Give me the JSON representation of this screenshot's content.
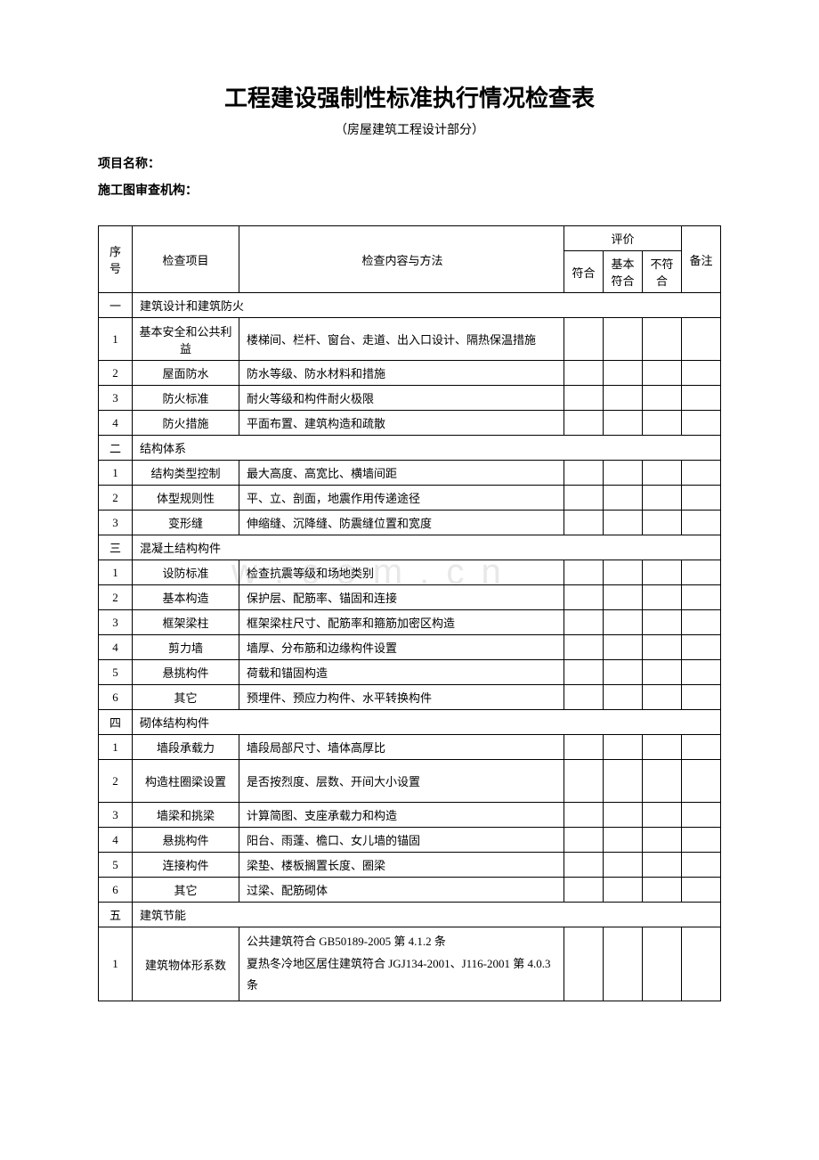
{
  "title": "工程建设强制性标准执行情况检查表",
  "subtitle": "（房屋建筑工程设计部分）",
  "fields": {
    "project_label": "项目名称：",
    "agency_label": "施工图审查机构："
  },
  "header": {
    "seq": "序号",
    "item": "检查项目",
    "content": "检查内容与方法",
    "eval": "评价",
    "eval_pass": "符合",
    "eval_basic": "基本符合",
    "eval_fail": "不符合",
    "note": "备注"
  },
  "sections": [
    {
      "num": "一",
      "label": "建筑设计和建筑防火",
      "rows": [
        {
          "n": "1",
          "item": "基本安全和公共利益",
          "content": "楼梯间、栏杆、窗台、走道、出入口设计、隔热保温措施",
          "tall": true
        },
        {
          "n": "2",
          "item": "屋面防水",
          "content": "防水等级、防水材料和措施"
        },
        {
          "n": "3",
          "item": "防火标准",
          "content": "耐火等级和构件耐火极限"
        },
        {
          "n": "4",
          "item": "防火措施",
          "content": "平面布置、建筑构造和疏散"
        }
      ]
    },
    {
      "num": "二",
      "label": "结构体系",
      "rows": [
        {
          "n": "1",
          "item": "结构类型控制",
          "content": "最大高度、高宽比、横墙间距"
        },
        {
          "n": "2",
          "item": "体型规则性",
          "content": "平、立、剖面，地震作用传递途径"
        },
        {
          "n": "3",
          "item": "变形缝",
          "content": "伸缩缝、沉降缝、防震缝位置和宽度"
        }
      ]
    },
    {
      "num": "三",
      "label": "混凝土结构构件",
      "rows": [
        {
          "n": "1",
          "item": "设防标准",
          "content": "检查抗震等级和场地类别"
        },
        {
          "n": "2",
          "item": "基本构造",
          "content": "保护层、配筋率、锚固和连接"
        },
        {
          "n": "3",
          "item": "框架梁柱",
          "content": "框架梁柱尺寸、配筋率和箍筋加密区构造"
        },
        {
          "n": "4",
          "item": "剪力墙",
          "content": "墙厚、分布筋和边缘构件设置"
        },
        {
          "n": "5",
          "item": "悬挑构件",
          "content": "荷载和锚固构造"
        },
        {
          "n": "6",
          "item": "其它",
          "content": "预埋件、预应力构件、水平转换构件"
        }
      ]
    },
    {
      "num": "四",
      "label": "砌体结构构件",
      "rows": [
        {
          "n": "1",
          "item": "墙段承载力",
          "content": "墙段局部尺寸、墙体高厚比"
        },
        {
          "n": "2",
          "item": "构造柱圈梁设置",
          "content": "是否按烈度、层数、开间大小设置",
          "tall": true
        },
        {
          "n": "3",
          "item": "墙梁和挑梁",
          "content": "计算简图、支座承载力和构造"
        },
        {
          "n": "4",
          "item": "悬挑构件",
          "content": "阳台、雨蓬、檐口、女儿墙的锚固"
        },
        {
          "n": "5",
          "item": "连接构件",
          "content": "梁垫、楼板搁置长度、圈梁"
        },
        {
          "n": "6",
          "item": "其它",
          "content": "过梁、配筋砌体"
        }
      ]
    },
    {
      "num": "五",
      "label": "建筑节能",
      "rows": [
        {
          "n": "1",
          "item": "建筑物体形系数",
          "content": "公共建筑符合 GB50189-2005 第 4.1.2 条\n夏热冬冷地区居住建筑符合 JGJ134-2001、J116-2001 第 4.0.3 条",
          "taller": true
        }
      ]
    }
  ],
  "watermark": "w . c o m . c n"
}
